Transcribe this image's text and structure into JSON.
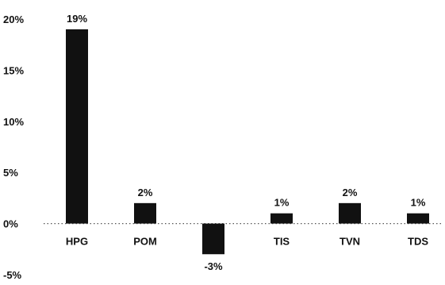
{
  "chart_data": {
    "type": "bar",
    "title": "",
    "xlabel": "",
    "ylabel": "",
    "categories": [
      "HPG",
      "POM",
      "",
      "TIS",
      "TVN",
      "TDS"
    ],
    "values": [
      19,
      2,
      -3,
      1,
      2,
      1
    ],
    "data_labels": [
      "19%",
      "2%",
      "-3%",
      "1%",
      "2%",
      "1%"
    ],
    "ylim": [
      -5,
      20
    ],
    "yticks": [
      20,
      15,
      10,
      5,
      0,
      -5
    ],
    "ytick_labels": [
      "20%",
      "15%",
      "10%",
      "5%",
      "0%",
      "-5%"
    ],
    "grid": false,
    "bar_color": "#111111",
    "baseline_style": "dotted"
  }
}
